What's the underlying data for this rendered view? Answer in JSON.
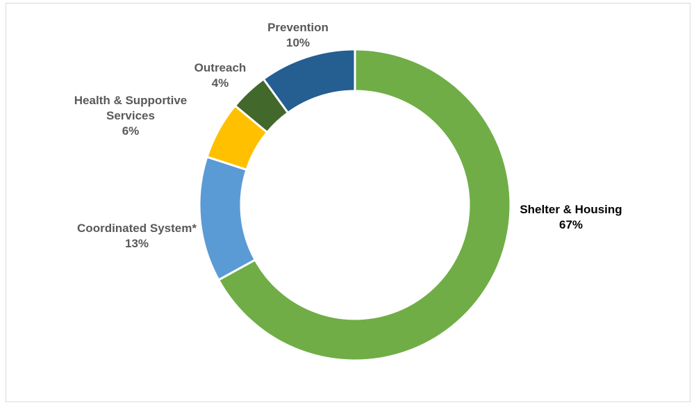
{
  "chart_data": {
    "type": "pie",
    "variant": "donut",
    "title": "",
    "legend": "none",
    "slices": [
      {
        "label_lines": [
          "Shelter & Housing"
        ],
        "percent_label": "67%",
        "value": 67,
        "color": "#70ad47",
        "label_color": "#000000"
      },
      {
        "label_lines": [
          "Coordinated System*"
        ],
        "percent_label": "13%",
        "value": 13,
        "color": "#5b9bd5",
        "label_color": "#595959"
      },
      {
        "label_lines": [
          "Health & Supportive",
          "Services"
        ],
        "percent_label": "6%",
        "value": 6,
        "color": "#ffc000",
        "label_color": "#595959"
      },
      {
        "label_lines": [
          "Outreach"
        ],
        "percent_label": "4%",
        "value": 4,
        "color": "#43682b",
        "label_color": "#595959"
      },
      {
        "label_lines": [
          "Prevention"
        ],
        "percent_label": "10%",
        "value": 10,
        "color": "#255e91",
        "label_color": "#595959"
      }
    ]
  }
}
